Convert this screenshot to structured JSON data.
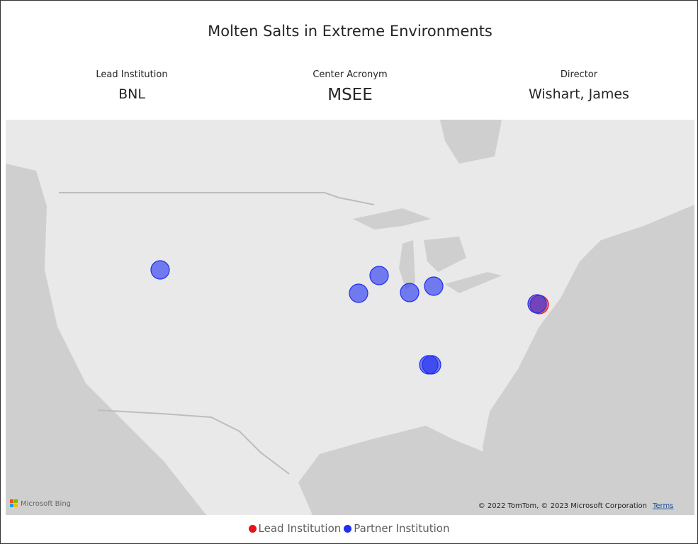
{
  "header": {
    "title": "Molten Salts in Extreme Environments"
  },
  "cards": [
    {
      "label": "Lead Institution",
      "value": "BNL"
    },
    {
      "label": "Center Acronym",
      "value": "MSEE"
    },
    {
      "label": "Director",
      "value": "Wishart, James"
    }
  ],
  "map": {
    "provider": "Microsoft Bing",
    "attribution": "© 2022 TomTom, © 2023 Microsoft Corporation",
    "terms": "Terms"
  },
  "legend": [
    {
      "label": "Lead Institution",
      "color": "#e8121b"
    },
    {
      "label": "Partner Institution",
      "color": "#1f2ff0"
    }
  ]
}
